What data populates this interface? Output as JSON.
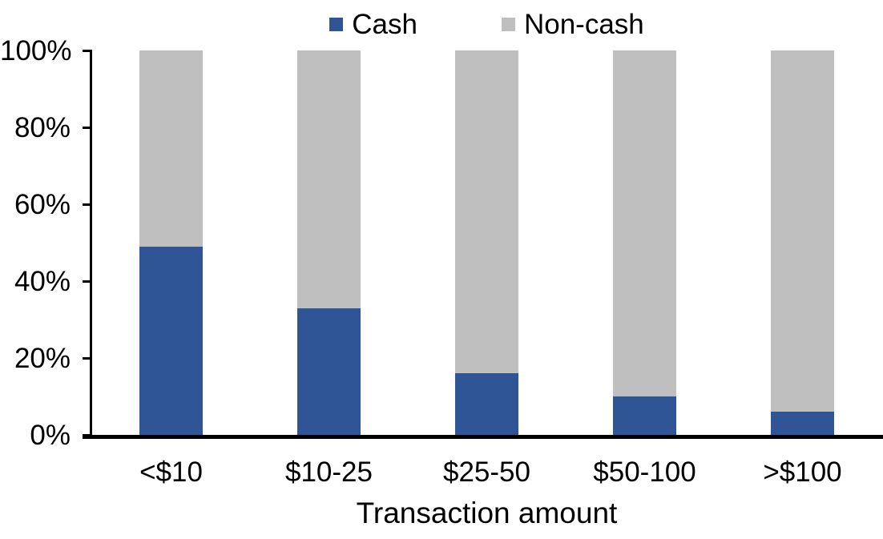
{
  "chart_data": {
    "type": "bar",
    "stacked": true,
    "stacked_to_100_percent": true,
    "title": "",
    "xlabel": "Transaction amount",
    "ylabel": "",
    "categories": [
      "<$10",
      "$10-25",
      "$25-50",
      "$50-100",
      ">$100"
    ],
    "series": [
      {
        "name": "Cash",
        "color": "#2F5597",
        "values": [
          49,
          33,
          16,
          10,
          6
        ]
      },
      {
        "name": "Non-cash",
        "color": "#BFBFBF",
        "values": [
          51,
          67,
          84,
          90,
          94
        ]
      }
    ],
    "ylim": [
      0,
      100
    ],
    "yticks": [
      {
        "value": 0,
        "label": "0%"
      },
      {
        "value": 20,
        "label": "20%"
      },
      {
        "value": 40,
        "label": "40%"
      },
      {
        "value": 60,
        "label": "60%"
      },
      {
        "value": 80,
        "label": "80%"
      },
      {
        "value": 100,
        "label": "100%"
      }
    ],
    "grid": false,
    "legend_position": "top-center",
    "axis_color": "#000000",
    "text_color": "#000000",
    "background_color": "#FFFFFF"
  }
}
